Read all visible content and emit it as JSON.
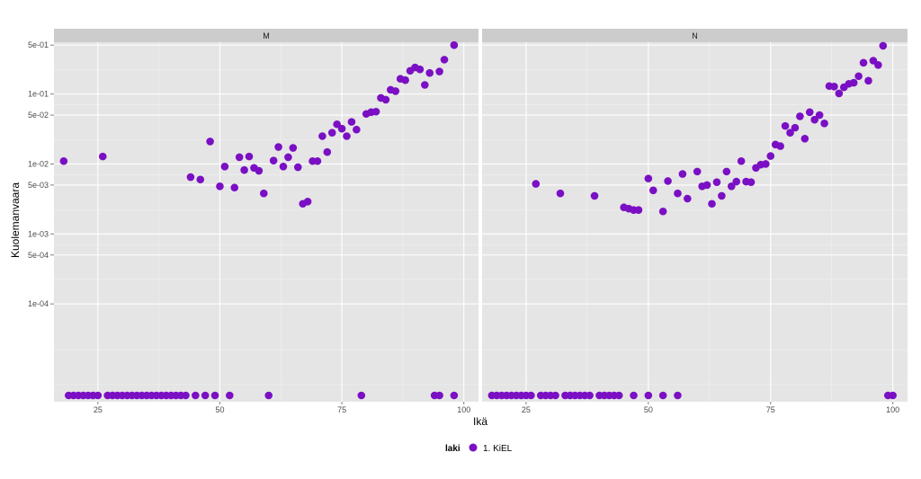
{
  "chart_data": {
    "type": "scatter",
    "ylabel": "Kuolemanvaara",
    "xlabel": "Ikä",
    "x_ticks": [
      25,
      50,
      75,
      100
    ],
    "xlim": [
      16,
      103
    ],
    "y_scale": "log",
    "y_ticks": [
      "1e-04",
      "5e-04",
      "1e-03",
      "5e-03",
      "1e-02",
      "5e-02",
      "1e-01",
      "5e-01"
    ],
    "ylim": [
      4e-06,
      0.55
    ],
    "zero_row_value": 0,
    "point_color": "#7a0fc4",
    "panel_bg": "#e5e5e5",
    "strip_bg": "#cccccc",
    "legend": {
      "title": "laki",
      "items": [
        "1. KiEL"
      ],
      "position": "bottom"
    },
    "panels": [
      {
        "label": "M",
        "points": [
          [
            18,
            0.011
          ],
          [
            26,
            0.0128
          ],
          [
            44,
            0.0065
          ],
          [
            46,
            0.006
          ],
          [
            48,
            0.021
          ],
          [
            50,
            0.0048
          ],
          [
            51,
            0.0092
          ],
          [
            53,
            0.0046
          ],
          [
            54,
            0.0125
          ],
          [
            55,
            0.0082
          ],
          [
            56,
            0.0128
          ],
          [
            57,
            0.0088
          ],
          [
            58,
            0.008
          ],
          [
            59,
            0.0038
          ],
          [
            61,
            0.0112
          ],
          [
            62,
            0.0175
          ],
          [
            63,
            0.0092
          ],
          [
            64,
            0.0125
          ],
          [
            65,
            0.017
          ],
          [
            66,
            0.009
          ],
          [
            67,
            0.0027
          ],
          [
            68,
            0.0029
          ],
          [
            69,
            0.011
          ],
          [
            70,
            0.011
          ],
          [
            71,
            0.025
          ],
          [
            72,
            0.0148
          ],
          [
            73,
            0.028
          ],
          [
            74,
            0.037
          ],
          [
            75,
            0.032
          ],
          [
            76,
            0.025
          ],
          [
            77,
            0.04
          ],
          [
            78,
            0.031
          ],
          [
            80,
            0.052
          ],
          [
            81,
            0.055
          ],
          [
            82,
            0.056
          ],
          [
            83,
            0.088
          ],
          [
            84,
            0.083
          ],
          [
            85,
            0.115
          ],
          [
            86,
            0.11
          ],
          [
            87,
            0.165
          ],
          [
            88,
            0.158
          ],
          [
            89,
            0.215
          ],
          [
            90,
            0.24
          ],
          [
            91,
            0.225
          ],
          [
            92,
            0.135
          ],
          [
            93,
            0.2
          ],
          [
            95,
            0.21
          ],
          [
            96,
            0.31
          ],
          [
            98,
            0.5
          ]
        ],
        "zero_ages": [
          19,
          20,
          21,
          22,
          23,
          24,
          25,
          27,
          28,
          29,
          30,
          31,
          32,
          33,
          34,
          35,
          36,
          37,
          38,
          39,
          40,
          41,
          42,
          43,
          45,
          47,
          49,
          52,
          60,
          79,
          94,
          95,
          98
        ]
      },
      {
        "label": "N",
        "points": [
          [
            27,
            0.0052
          ],
          [
            32,
            0.0038
          ],
          [
            39,
            0.0035
          ],
          [
            45,
            0.0024
          ],
          [
            46,
            0.0023
          ],
          [
            47,
            0.0022
          ],
          [
            48,
            0.0022
          ],
          [
            50,
            0.0062
          ],
          [
            51,
            0.0042
          ],
          [
            53,
            0.0021
          ],
          [
            54,
            0.0057
          ],
          [
            56,
            0.0038
          ],
          [
            57,
            0.0072
          ],
          [
            58,
            0.0032
          ],
          [
            60,
            0.0078
          ],
          [
            61,
            0.0048
          ],
          [
            62,
            0.005
          ],
          [
            63,
            0.0027
          ],
          [
            64,
            0.0055
          ],
          [
            65,
            0.0035
          ],
          [
            66,
            0.0078
          ],
          [
            67,
            0.0048
          ],
          [
            68,
            0.0056
          ],
          [
            69,
            0.011
          ],
          [
            70,
            0.0056
          ],
          [
            71,
            0.0055
          ],
          [
            72,
            0.0088
          ],
          [
            73,
            0.0098
          ],
          [
            74,
            0.01
          ],
          [
            75,
            0.013
          ],
          [
            76,
            0.019
          ],
          [
            77,
            0.018
          ],
          [
            78,
            0.035
          ],
          [
            79,
            0.028
          ],
          [
            80,
            0.033
          ],
          [
            81,
            0.048
          ],
          [
            82,
            0.023
          ],
          [
            83,
            0.055
          ],
          [
            84,
            0.043
          ],
          [
            85,
            0.05
          ],
          [
            86,
            0.038
          ],
          [
            87,
            0.13
          ],
          [
            88,
            0.128
          ],
          [
            89,
            0.102
          ],
          [
            90,
            0.125
          ],
          [
            91,
            0.14
          ],
          [
            92,
            0.145
          ],
          [
            93,
            0.18
          ],
          [
            94,
            0.28
          ],
          [
            95,
            0.155
          ],
          [
            96,
            0.3
          ],
          [
            97,
            0.26
          ],
          [
            98,
            0.49
          ]
        ],
        "zero_ages": [
          18,
          19,
          20,
          21,
          22,
          23,
          24,
          25,
          26,
          28,
          29,
          30,
          31,
          33,
          34,
          35,
          36,
          37,
          38,
          40,
          41,
          42,
          43,
          44,
          47,
          50,
          53,
          56,
          99,
          100
        ]
      }
    ]
  }
}
